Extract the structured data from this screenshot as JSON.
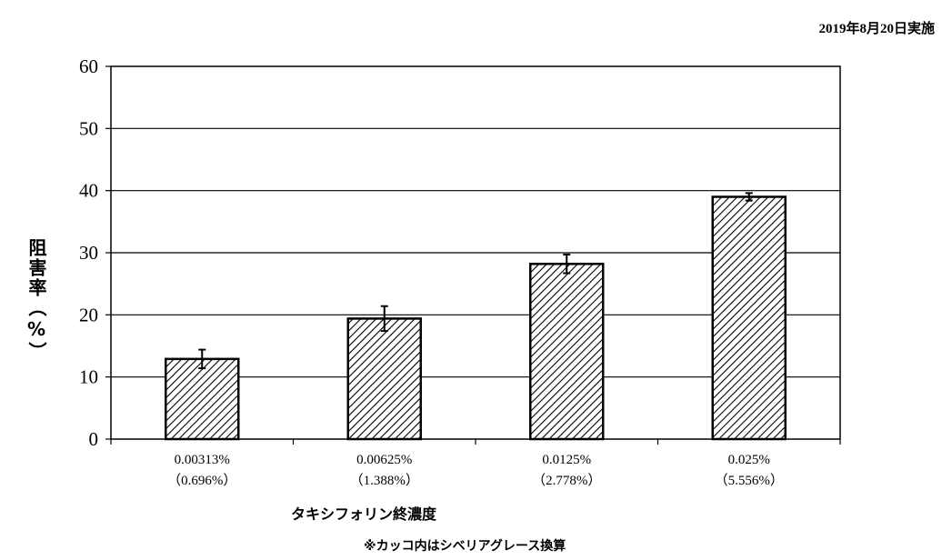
{
  "header": {
    "date_note": "2019年8月20日実施"
  },
  "chart_data": {
    "type": "bar",
    "ylabel": "阻害率（%）",
    "xlabel": "タキシフォリン終濃度",
    "note": "※カッコ内はシベリアグレース換算",
    "ylim": [
      0,
      60
    ],
    "yticks": [
      0,
      10,
      20,
      30,
      40,
      50,
      60
    ],
    "grid": true,
    "categories": [
      "0.00313%",
      "0.00625%",
      "0.0125%",
      "0.025%"
    ],
    "category_sublabels": [
      "（0.696%）",
      "（1.388%）",
      "（2.778%）",
      "（5.556%）"
    ],
    "values": [
      12.9,
      19.4,
      28.2,
      39.0
    ],
    "errors": [
      1.5,
      2.0,
      1.5,
      0.6
    ],
    "bar_fill": "diagonal-hatch",
    "bar_stroke": "#000000"
  }
}
